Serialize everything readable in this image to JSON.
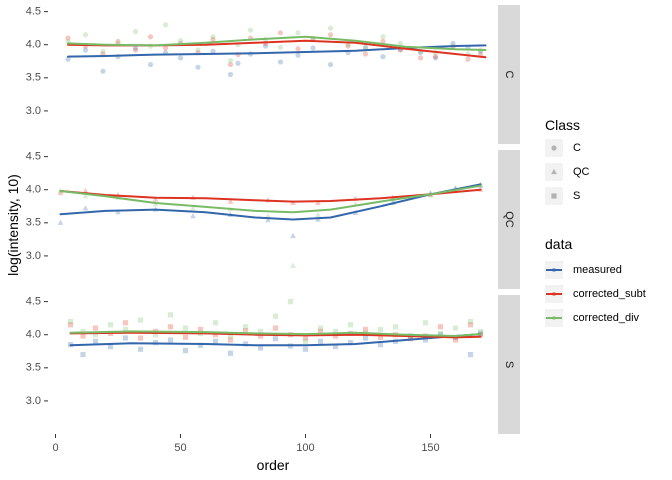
{
  "chart_data": {
    "type": "scatter",
    "xlabel": "order",
    "ylabel": "log(intensity, 10)",
    "xlim": [
      -3,
      177
    ],
    "ylim": [
      2.5,
      4.6
    ],
    "x_ticks": [
      0,
      50,
      100,
      150
    ],
    "y_ticks": [
      3.0,
      3.5,
      4.0,
      4.5
    ],
    "y_tick_labels": [
      "3.0",
      "3.5",
      "4.0",
      "4.5"
    ],
    "grid": false,
    "facets": [
      "C",
      "QC",
      "S"
    ],
    "legend_position": "right",
    "shape_legend": {
      "title": "Class",
      "items": [
        {
          "label": "C",
          "shape": "circle"
        },
        {
          "label": "QC",
          "shape": "triangle"
        },
        {
          "label": "S",
          "shape": "square"
        }
      ]
    },
    "series": [
      {
        "name": "measured",
        "color": "#3366aa"
      },
      {
        "name": "corrected_subt",
        "color": "#dd3322"
      },
      {
        "name": "corrected_div",
        "color": "#77bb66"
      }
    ],
    "trend_lines": {
      "C": {
        "x": [
          5,
          20,
          40,
          60,
          80,
          100,
          120,
          140,
          160,
          172
        ],
        "measured": [
          3.82,
          3.83,
          3.85,
          3.86,
          3.87,
          3.89,
          3.91,
          3.95,
          3.98,
          3.99
        ],
        "corrected_subt": [
          4.0,
          3.99,
          3.99,
          4.0,
          4.03,
          4.06,
          4.03,
          3.94,
          3.86,
          3.81
        ],
        "corrected_div": [
          4.02,
          4.0,
          3.99,
          4.03,
          4.08,
          4.12,
          4.06,
          3.97,
          3.93,
          3.92
        ]
      },
      "QC": {
        "x": [
          2,
          20,
          40,
          60,
          80,
          95,
          110,
          130,
          150,
          170
        ],
        "measured": [
          3.63,
          3.68,
          3.7,
          3.66,
          3.58,
          3.55,
          3.58,
          3.75,
          3.93,
          4.08
        ],
        "corrected_subt": [
          3.98,
          3.92,
          3.88,
          3.87,
          3.84,
          3.82,
          3.83,
          3.87,
          3.93,
          4.0
        ],
        "corrected_div": [
          3.98,
          3.9,
          3.8,
          3.74,
          3.68,
          3.66,
          3.7,
          3.82,
          3.93,
          4.06
        ]
      },
      "S": {
        "x": [
          6,
          30,
          60,
          80,
          100,
          120,
          140,
          160,
          170
        ],
        "measured": [
          3.84,
          3.87,
          3.86,
          3.84,
          3.84,
          3.86,
          3.92,
          3.98,
          4.01
        ],
        "corrected_subt": [
          4.02,
          4.03,
          4.02,
          4.0,
          3.99,
          4.0,
          3.98,
          3.96,
          3.97
        ],
        "corrected_div": [
          4.03,
          4.05,
          4.04,
          4.02,
          4.01,
          4.03,
          4.0,
          3.98,
          4.01
        ]
      }
    },
    "points": {
      "C": {
        "x": [
          5,
          12,
          19,
          25,
          32,
          38,
          44,
          50,
          57,
          63,
          70,
          73,
          78,
          84,
          90,
          97,
          103,
          110,
          117,
          124,
          131,
          138,
          146,
          152,
          159,
          165,
          170
        ],
        "measured": [
          3.78,
          3.92,
          3.6,
          3.82,
          3.95,
          3.7,
          3.88,
          3.8,
          3.66,
          3.9,
          3.55,
          3.72,
          3.86,
          3.98,
          3.74,
          3.84,
          3.95,
          3.7,
          3.88,
          3.96,
          3.82,
          3.93,
          3.88,
          3.8,
          4.02,
          3.95,
          3.9
        ],
        "corrected_subt": [
          4.1,
          3.98,
          3.86,
          4.05,
          3.92,
          4.12,
          3.95,
          4.02,
          3.88,
          4.08,
          3.7,
          3.85,
          4.1,
          4.02,
          4.18,
          3.94,
          4.08,
          4.15,
          3.98,
          3.86,
          4.05,
          3.92,
          3.8,
          3.82,
          3.96,
          3.78,
          3.85
        ],
        "corrected_div": [
          4.05,
          4.15,
          3.9,
          4.02,
          4.2,
          3.98,
          4.3,
          4.06,
          3.92,
          4.12,
          3.76,
          4.0,
          4.22,
          4.08,
          3.96,
          4.18,
          4.1,
          4.25,
          4.0,
          3.94,
          4.12,
          4.02,
          3.9,
          3.88,
          3.98,
          3.86,
          3.92
        ]
      },
      "QC": {
        "x": [
          2,
          12,
          25,
          40,
          55,
          70,
          85,
          95,
          105,
          120,
          135,
          150,
          160,
          170
        ],
        "measured": [
          3.5,
          3.72,
          3.66,
          3.7,
          3.6,
          3.62,
          3.54,
          3.3,
          3.55,
          3.65,
          3.8,
          3.95,
          4.02,
          4.06
        ],
        "corrected_subt": [
          3.95,
          3.98,
          3.92,
          3.85,
          3.88,
          3.82,
          3.84,
          3.8,
          3.8,
          3.86,
          3.88,
          3.92,
          3.98,
          4.0
        ],
        "corrected_div": [
          3.98,
          3.9,
          3.88,
          3.78,
          3.72,
          3.7,
          3.6,
          2.85,
          3.62,
          3.78,
          3.85,
          3.92,
          4.02,
          4.08
        ]
      },
      "S": {
        "x": [
          6,
          11,
          16,
          22,
          28,
          34,
          40,
          46,
          52,
          58,
          64,
          70,
          76,
          82,
          88,
          94,
          100,
          106,
          112,
          118,
          124,
          130,
          136,
          142,
          148,
          154,
          160,
          166,
          170
        ],
        "measured": [
          3.85,
          3.7,
          3.9,
          3.82,
          3.95,
          3.78,
          3.88,
          3.92,
          3.76,
          3.84,
          3.9,
          3.72,
          3.86,
          3.8,
          3.94,
          3.83,
          3.78,
          3.9,
          3.82,
          3.88,
          3.95,
          3.85,
          3.9,
          3.98,
          3.92,
          4.0,
          3.96,
          3.7,
          4.02
        ],
        "corrected_subt": [
          4.15,
          3.98,
          4.1,
          4.02,
          4.18,
          3.95,
          4.05,
          4.12,
          3.96,
          4.08,
          4.0,
          3.92,
          4.06,
          3.98,
          4.1,
          4.0,
          3.95,
          4.05,
          3.98,
          4.02,
          4.08,
          3.96,
          4.0,
          3.94,
          3.98,
          4.12,
          3.92,
          4.15,
          4.0
        ],
        "corrected_div": [
          4.2,
          4.05,
          4.0,
          4.15,
          4.08,
          4.22,
          4.0,
          4.3,
          4.1,
          4.02,
          4.18,
          3.98,
          4.12,
          4.05,
          4.28,
          4.5,
          3.9,
          4.1,
          4.05,
          4.15,
          4.02,
          4.08,
          4.12,
          3.98,
          4.18,
          4.02,
          4.1,
          4.2,
          4.05
        ]
      }
    }
  }
}
